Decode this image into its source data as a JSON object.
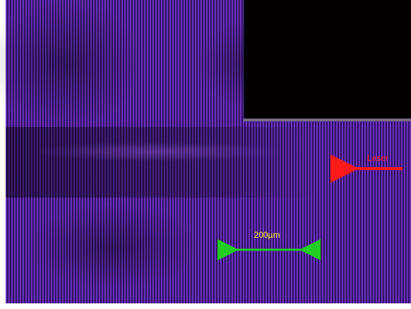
{
  "annotations": {
    "laser": "Laser",
    "scale_bar": "200µm"
  }
}
